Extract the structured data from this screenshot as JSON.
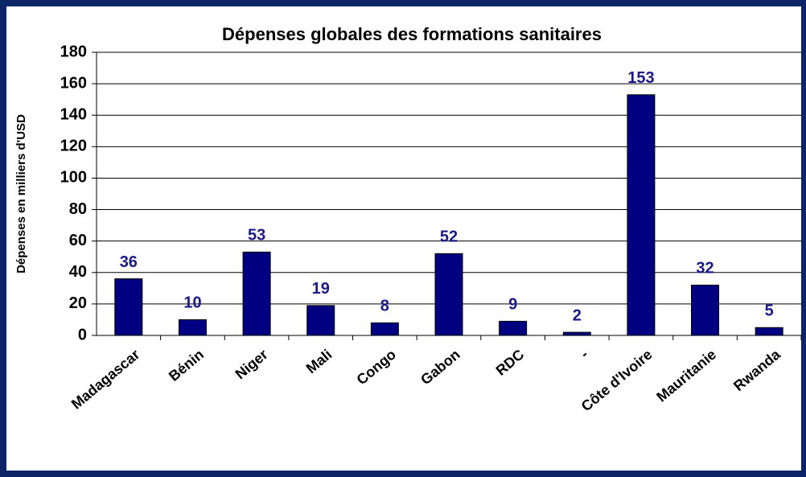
{
  "chart_data": {
    "type": "bar",
    "title": "Dépenses globales des formations sanitaires",
    "y_label": "Dépenses en milliers d'USD",
    "categories": [
      "Madagascar",
      "Bénin",
      "Niger",
      "Mali",
      "Congo",
      "Gabon",
      "RDC",
      "-",
      "Côte d'Ivoire",
      "Mauritanie",
      "Rwanda"
    ],
    "values": [
      36,
      10,
      53,
      19,
      8,
      52,
      9,
      2,
      153,
      32,
      5
    ],
    "color": "#000080",
    "ylim": [
      0,
      180
    ],
    "yticks": [
      0,
      20,
      40,
      60,
      80,
      100,
      120,
      140,
      160,
      180
    ],
    "grid": true
  }
}
